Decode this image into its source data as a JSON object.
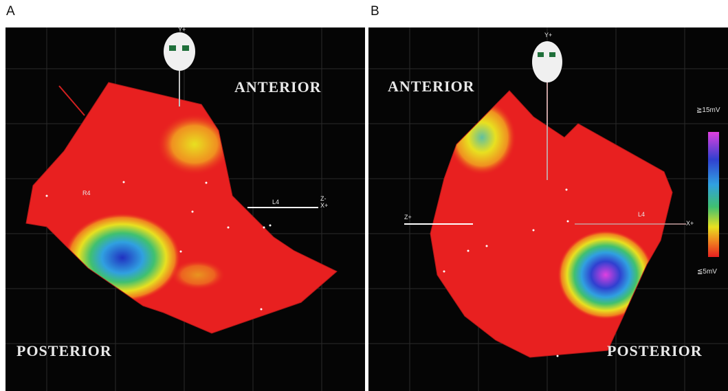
{
  "panels": [
    {
      "letter": "A",
      "top_label": "ANTERIOR",
      "bottom_label": "POSTERIOR",
      "head_axis_label": "Y+",
      "marker_label": "R4",
      "lead_label": "L4",
      "side_axis_label": "Z-",
      "side_axis_label_2": "X+"
    },
    {
      "letter": "B",
      "top_label": "ANTERIOR",
      "bottom_label": "POSTERIOR",
      "head_axis_label": "Y+",
      "lead_label": "L4",
      "left_axis_label": "Z+",
      "right_axis_label": "X+"
    }
  ],
  "color_scale": {
    "max_label": "≧15mV",
    "min_label": "≦5mV",
    "colors": [
      "#e040e0",
      "#3040d0",
      "#30a0e0",
      "#40c070",
      "#e8e020",
      "#f08020",
      "#e82020"
    ]
  }
}
